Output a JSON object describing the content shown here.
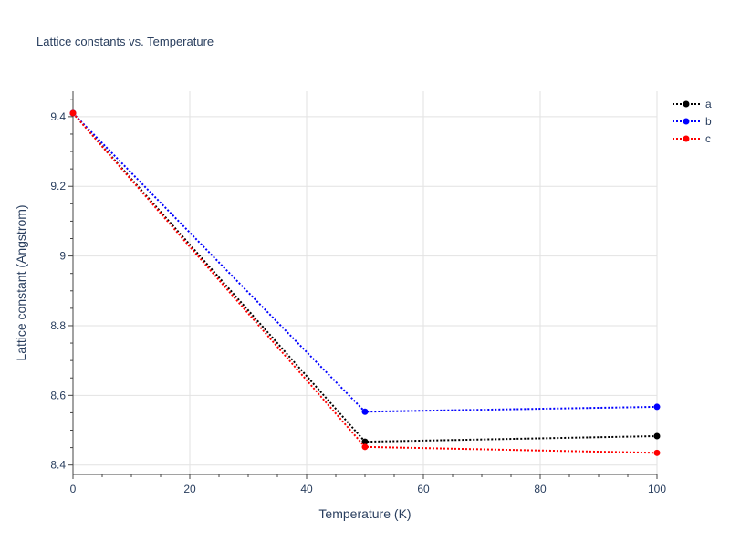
{
  "chart_data": {
    "type": "line",
    "title": "Lattice constants vs. Temperature",
    "xlabel": "Temperature (K)",
    "ylabel": "Lattice constant (Angstrom)",
    "xlim": [
      0,
      100
    ],
    "ylim": [
      8.373,
      9.473
    ],
    "x_ticks": [
      0,
      20,
      40,
      60,
      80,
      100
    ],
    "x_tick_labels": [
      "0",
      "20",
      "40",
      "60",
      "80",
      "100"
    ],
    "y_ticks": [
      8.4,
      8.6,
      8.8,
      9.0,
      9.2,
      9.4
    ],
    "y_tick_labels": [
      "8.4",
      "8.6",
      "8.8",
      "9",
      "9.2",
      "9.4"
    ],
    "grid": true,
    "legend_position": "top-right",
    "line_style": "dotted",
    "series": [
      {
        "name": "a",
        "color": "#000000",
        "x": [
          0,
          50,
          100
        ],
        "y": [
          9.41,
          8.467,
          8.483
        ]
      },
      {
        "name": "b",
        "color": "#0000ff",
        "x": [
          0,
          50,
          100
        ],
        "y": [
          9.41,
          8.553,
          8.567
        ]
      },
      {
        "name": "c",
        "color": "#ff0000",
        "x": [
          0,
          50,
          100
        ],
        "y": [
          9.41,
          8.452,
          8.435
        ]
      }
    ]
  }
}
